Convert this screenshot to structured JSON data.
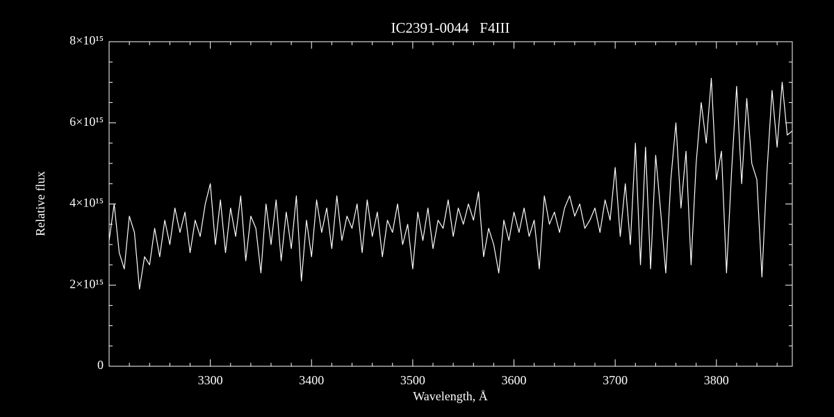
{
  "chart_data": {
    "type": "line",
    "title": "IC2391-0044   F4III",
    "x_label": "Wavelength, Å",
    "y_label": "Relative flux",
    "color": "#ffffff",
    "background": "#000000",
    "xlim": [
      3200,
      3875
    ],
    "ylim": [
      0,
      8000000000000000.0
    ],
    "xticks": [
      3300,
      3400,
      3500,
      3600,
      3700,
      3800
    ],
    "yticks": [
      0,
      {
        "value": 2000000000000000.0,
        "label": "2×10¹⁵"
      },
      {
        "value": 4000000000000000.0,
        "label": "4×10¹⁵"
      },
      {
        "value": 6000000000000000.0,
        "label": "6×10¹⁵"
      },
      {
        "value": 8000000000000000.0,
        "label": "8×10¹⁵"
      }
    ],
    "xminor_ticks": [
      3220,
      3240,
      3260,
      3280,
      3320,
      3340,
      3360,
      3380,
      3420,
      3440,
      3460,
      3480,
      3520,
      3540,
      3560,
      3580,
      3620,
      3640,
      3660,
      3680,
      3720,
      3740,
      3760,
      3780,
      3820,
      3840,
      3860
    ],
    "yminor_ticks": [
      500000000000000.0,
      1000000000000000.0,
      1500000000000000.0,
      2500000000000000.0,
      3000000000000000.0,
      3500000000000000.0,
      4500000000000000.0,
      5000000000000000.0,
      5500000000000000.0,
      6500000000000000.0,
      7000000000000000.0,
      7500000000000000.0
    ],
    "x": [
      3200,
      3205,
      3210,
      3215,
      3220,
      3225,
      3230,
      3235,
      3240,
      3245,
      3250,
      3255,
      3260,
      3265,
      3270,
      3275,
      3280,
      3285,
      3290,
      3295,
      3300,
      3305,
      3310,
      3315,
      3320,
      3325,
      3330,
      3335,
      3340,
      3345,
      3350,
      3355,
      3360,
      3365,
      3370,
      3375,
      3380,
      3385,
      3390,
      3395,
      3400,
      3405,
      3410,
      3415,
      3420,
      3425,
      3430,
      3435,
      3440,
      3445,
      3450,
      3455,
      3460,
      3465,
      3470,
      3475,
      3480,
      3485,
      3490,
      3495,
      3500,
      3505,
      3510,
      3515,
      3520,
      3525,
      3530,
      3535,
      3540,
      3545,
      3550,
      3555,
      3560,
      3565,
      3570,
      3575,
      3580,
      3585,
      3590,
      3595,
      3600,
      3605,
      3610,
      3615,
      3620,
      3625,
      3630,
      3635,
      3640,
      3645,
      3650,
      3655,
      3660,
      3665,
      3670,
      3675,
      3680,
      3685,
      3690,
      3695,
      3700,
      3705,
      3710,
      3715,
      3720,
      3725,
      3730,
      3735,
      3740,
      3745,
      3750,
      3755,
      3760,
      3765,
      3770,
      3775,
      3780,
      3785,
      3790,
      3795,
      3800,
      3805,
      3810,
      3815,
      3820,
      3825,
      3830,
      3835,
      3840,
      3845,
      3850,
      3855,
      3860,
      3865,
      3870,
      3875
    ],
    "values": [
      3100000000000000.0,
      4000000000000000.0,
      2800000000000000.0,
      2400000000000000.0,
      3700000000000000.0,
      3300000000000000.0,
      1900000000000000.0,
      2700000000000000.0,
      2500000000000000.0,
      3400000000000000.0,
      2700000000000000.0,
      3600000000000000.0,
      3000000000000000.0,
      3900000000000000.0,
      3300000000000000.0,
      3800000000000000.0,
      2800000000000000.0,
      3600000000000000.0,
      3200000000000000.0,
      4000000000000000.0,
      4500000000000000.0,
      3000000000000000.0,
      4100000000000000.0,
      2800000000000000.0,
      3900000000000000.0,
      3200000000000000.0,
      4200000000000000.0,
      2600000000000000.0,
      3700000000000000.0,
      3400000000000000.0,
      2300000000000000.0,
      4000000000000000.0,
      3000000000000000.0,
      4100000000000000.0,
      2600000000000000.0,
      3800000000000000.0,
      2900000000000000.0,
      4200000000000000.0,
      2100000000000000.0,
      3600000000000000.0,
      2700000000000000.0,
      4100000000000000.0,
      3300000000000000.0,
      3900000000000000.0,
      2900000000000000.0,
      4200000000000000.0,
      3100000000000000.0,
      3700000000000000.0,
      3400000000000000.0,
      4000000000000000.0,
      2800000000000000.0,
      4100000000000000.0,
      3200000000000000.0,
      3800000000000000.0,
      2700000000000000.0,
      3600000000000000.0,
      3300000000000000.0,
      4000000000000000.0,
      3000000000000000.0,
      3500000000000000.0,
      2400000000000000.0,
      3800000000000000.0,
      3100000000000000.0,
      3900000000000000.0,
      2900000000000000.0,
      3600000000000000.0,
      3400000000000000.0,
      4100000000000000.0,
      3200000000000000.0,
      3900000000000000.0,
      3500000000000000.0,
      4000000000000000.0,
      3600000000000000.0,
      4300000000000000.0,
      2700000000000000.0,
      3400000000000000.0,
      3000000000000000.0,
      2300000000000000.0,
      3600000000000000.0,
      3100000000000000.0,
      3800000000000000.0,
      3300000000000000.0,
      3900000000000000.0,
      3200000000000000.0,
      3600000000000000.0,
      2400000000000000.0,
      4200000000000000.0,
      3500000000000000.0,
      3800000000000000.0,
      3300000000000000.0,
      3900000000000000.0,
      4200000000000000.0,
      3700000000000000.0,
      4000000000000000.0,
      3400000000000000.0,
      3600000000000000.0,
      3900000000000000.0,
      3300000000000000.0,
      4100000000000000.0,
      3600000000000000.0,
      4900000000000000.0,
      3200000000000000.0,
      4500000000000000.0,
      3000000000000000.0,
      5500000000000000.0,
      2500000000000000.0,
      5400000000000000.0,
      2400000000000000.0,
      5200000000000000.0,
      3800000000000000.0,
      2300000000000000.0,
      4600000000000000.0,
      6000000000000000.0,
      3900000000000000.0,
      5300000000000000.0,
      2500000000000000.0,
      5000000000000000.0,
      6500000000000000.0,
      5500000000000000.0,
      7100000000000000.0,
      4600000000000000.0,
      5300000000000000.0,
      2300000000000000.0,
      4800000000000000.0,
      6900000000000000.0,
      4500000000000000.0,
      6600000000000000.0,
      5000000000000000.0,
      4600000000000000.0,
      2200000000000000.0,
      4800000000000000.0,
      6800000000000000.0,
      5400000000000000.0,
      7000000000000000.0,
      5700000000000000.0,
      5800000000000000.0
    ]
  }
}
